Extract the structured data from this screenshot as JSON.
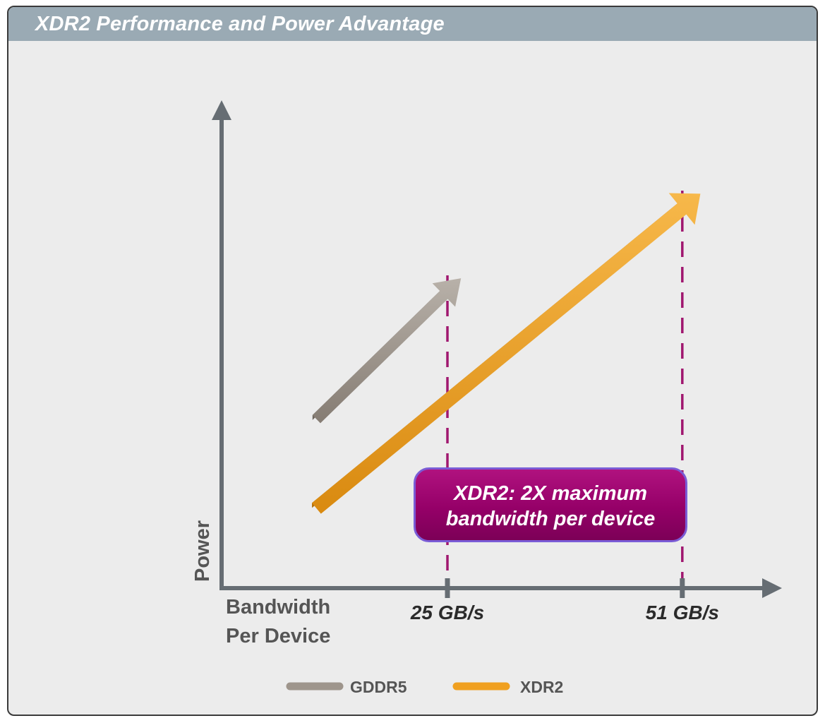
{
  "header": {
    "title": "XDR2 Performance and Power Advantage"
  },
  "callout": {
    "line1": "XDR2: 2X maximum",
    "line2": "bandwidth per device"
  },
  "colors": {
    "gddr5": "#9e958c",
    "xdr2": "#f0a020",
    "marker": "#a0176f",
    "callout": "#950068",
    "axis": "#666d73"
  },
  "chart_data": {
    "type": "line",
    "title": "XDR2 Performance and Power Advantage",
    "xlabel": [
      "Bandwidth",
      "Per Device"
    ],
    "ylabel": "Power",
    "xlim": [
      0,
      60
    ],
    "ylim": [
      0,
      10
    ],
    "xticks": [
      {
        "value": 25,
        "label": "25 GB/s"
      },
      {
        "value": 51,
        "label": "51 GB/s"
      }
    ],
    "series": [
      {
        "name": "GDDR5",
        "x": [
          10.5,
          26.5
        ],
        "y": [
          3.6,
          6.6
        ]
      },
      {
        "name": "XDR2",
        "x": [
          10.5,
          53
        ],
        "y": [
          1.7,
          8.4
        ]
      }
    ],
    "legend": {
      "position": "bottom-center",
      "entries": [
        "GDDR5",
        "XDR2"
      ]
    },
    "annotation": "XDR2: 2X maximum bandwidth per device",
    "grid": false
  }
}
